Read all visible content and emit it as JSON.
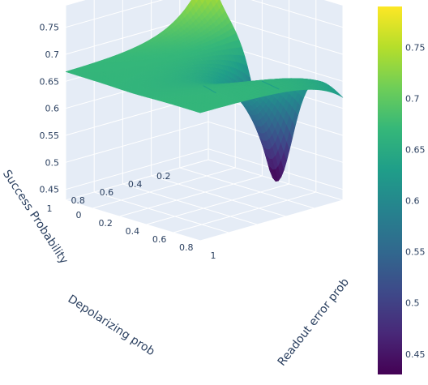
{
  "chart_data": {
    "type": "surface",
    "colorscale": "Viridis",
    "colorscale_stops": [
      "#440154",
      "#482878",
      "#3e4989",
      "#31688e",
      "#26828e",
      "#1f9e89",
      "#35b779",
      "#6ece58",
      "#b5de2b",
      "#fde725"
    ],
    "x_axis": {
      "title": "Readout error prob",
      "range": [
        0,
        1
      ],
      "tick_labels": [
        "0",
        "0.2",
        "0.4",
        "0.6",
        "0.8",
        "1"
      ]
    },
    "y_axis": {
      "title": "Depolarizing prob",
      "range": [
        0,
        1
      ],
      "tick_labels": [
        "0.2",
        "0.4",
        "0.6",
        "0.8",
        "1"
      ]
    },
    "z_axis": {
      "title": "Success Probability",
      "range": [
        0.43,
        0.79
      ],
      "tick_labels": [
        "0.45",
        "0.5",
        "0.55",
        "0.6",
        "0.65",
        "0.7",
        "0.75"
      ]
    },
    "colorbar": {
      "range": [
        0.43,
        0.79
      ],
      "tick_labels": [
        "0.45",
        "0.5",
        "0.55",
        "0.6",
        "0.65",
        "0.7",
        "0.75"
      ]
    },
    "surface_description": {
      "plateau_value": 0.667,
      "peak": {
        "readout_error": 0,
        "depolarizing": 0,
        "success": 0.79
      },
      "trough": {
        "readout_error": 0.5,
        "depolarizing": 0,
        "success": 0.43
      },
      "far_corner": {
        "readout_error": 1,
        "depolarizing": 0,
        "success": 0.62
      }
    }
  }
}
